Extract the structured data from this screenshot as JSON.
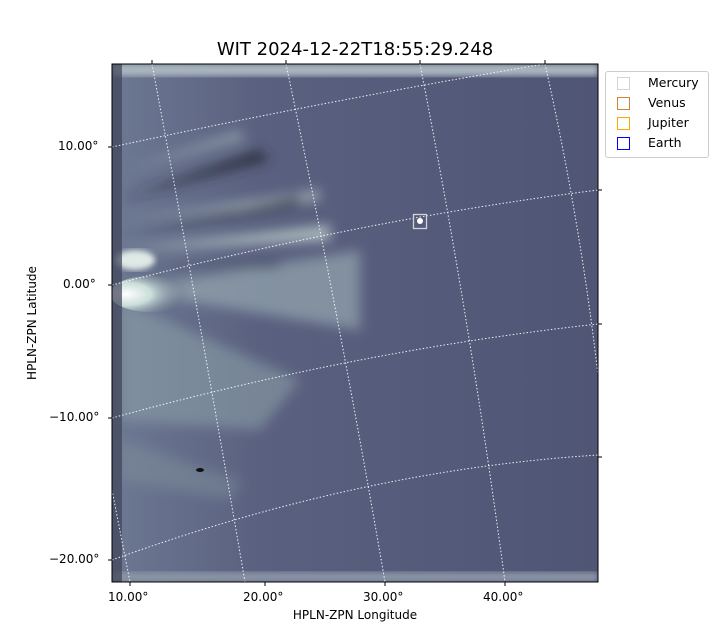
{
  "chart_data": {
    "type": "image",
    "title": "WIT 2024-12-22T18:55:29.248",
    "xlabel": "HPLN-ZPN Longitude",
    "ylabel": "HPLN-ZPN Latitude",
    "xticks": [
      "10.00°",
      "20.00°",
      "30.00°",
      "40.00°"
    ],
    "yticks": [
      "10.00°",
      "0.00°",
      "−10.00°",
      "−20.00°"
    ],
    "grid": true,
    "colormap": "bone",
    "legend_position": "outside-top-right",
    "legend": [
      {
        "name": "Mercury",
        "color": "#d3d3d3"
      },
      {
        "name": "Venus",
        "color": "#d2803a"
      },
      {
        "name": "Jupiter",
        "color": "#ffa500"
      },
      {
        "name": "Earth",
        "color": "#0000ff"
      }
    ],
    "markers": [
      {
        "name": "Mercury",
        "lon": 33,
        "lat": 4.5
      }
    ]
  }
}
